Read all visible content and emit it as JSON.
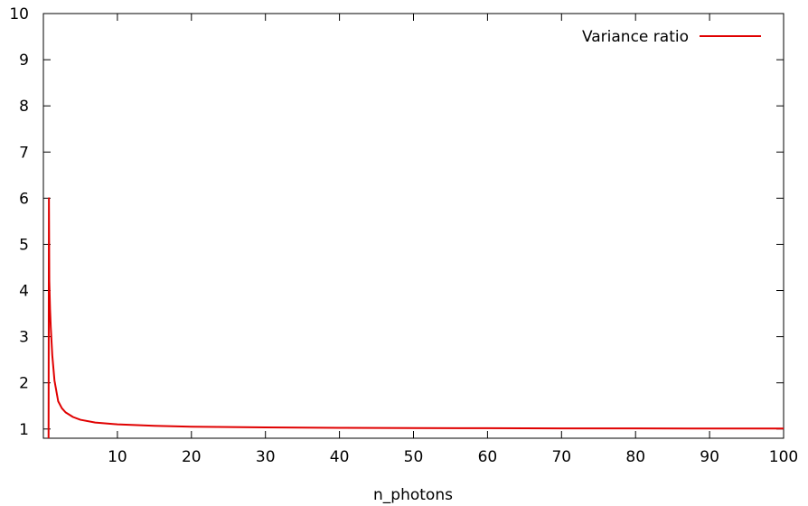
{
  "chart_data": {
    "type": "line",
    "title": "",
    "xlabel": "n_photons",
    "ylabel": "",
    "xlim": [
      0,
      100
    ],
    "ylim": [
      0.8,
      10
    ],
    "xticks": [
      10,
      20,
      30,
      40,
      50,
      60,
      70,
      80,
      90,
      100
    ],
    "yticks": [
      1,
      2,
      3,
      4,
      5,
      6,
      7,
      8,
      9,
      10
    ],
    "grid": false,
    "legend_position": "top-right",
    "series": [
      {
        "name": "Variance ratio",
        "color": "#e00000",
        "x": [
          0.7,
          0.75,
          0.8,
          0.9,
          1.0,
          1.2,
          1.5,
          2,
          2.5,
          3,
          4,
          5,
          7,
          10,
          15,
          20,
          30,
          40,
          50,
          60,
          70,
          80,
          90,
          100
        ],
        "y": [
          0.8,
          6.0,
          4.2,
          3.6,
          3.2,
          2.6,
          2.05,
          1.6,
          1.45,
          1.36,
          1.26,
          1.2,
          1.14,
          1.1,
          1.07,
          1.05,
          1.035,
          1.025,
          1.02,
          1.017,
          1.014,
          1.012,
          1.011,
          1.01
        ]
      }
    ]
  }
}
